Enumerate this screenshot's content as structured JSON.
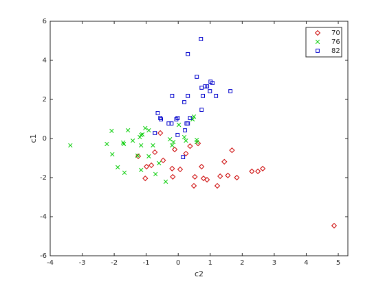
{
  "chart_data": {
    "type": "scatter",
    "x_label": "c2",
    "y_label": "c1",
    "xlim": [
      -4,
      5.3
    ],
    "ylim": [
      -6,
      6
    ],
    "xticks": [
      -4,
      -3,
      -2,
      -1,
      0,
      1,
      2,
      3,
      4,
      5
    ],
    "yticks": [
      -6,
      -4,
      -2,
      0,
      2,
      4,
      6
    ],
    "grid": false,
    "legend_position": "northeast",
    "series": [
      {
        "name": "70",
        "color": "#cc0000",
        "marker": "diamond",
        "x": [
          -0.56,
          -1.25,
          -0.99,
          -0.84,
          -0.73,
          -0.47,
          -1.03,
          -0.19,
          -0.17,
          0.06,
          -0.11,
          0.24,
          0.37,
          0.62,
          0.52,
          0.49,
          0.73,
          0.79,
          0.9,
          1.22,
          1.31,
          1.44,
          1.55,
          1.68,
          1.83,
          2.3,
          2.49,
          2.64,
          4.87
        ],
        "values": [
          0.28,
          -0.91,
          -1.44,
          -1.37,
          -0.7,
          -1.12,
          -2.04,
          -1.54,
          -1.96,
          -1.58,
          -0.56,
          -0.77,
          -0.39,
          -0.25,
          -1.96,
          -2.42,
          -1.44,
          -2.04,
          -2.11,
          -2.42,
          -1.93,
          -1.19,
          -1.89,
          -0.6,
          -2.0,
          -1.68,
          -1.68,
          -1.54,
          -4.46
        ]
      },
      {
        "name": "76",
        "color": "#00cc00",
        "marker": "x",
        "x": [
          -3.37,
          -2.23,
          -2.08,
          -2.06,
          -1.89,
          -1.72,
          -1.7,
          -1.68,
          -1.57,
          -1.42,
          -1.27,
          -1.2,
          -1.16,
          -1.16,
          -1.12,
          -1.16,
          -1.03,
          -0.92,
          -0.92,
          -0.79,
          -0.71,
          -0.6,
          -0.39,
          -0.26,
          -0.19,
          -0.15,
          0.02,
          0.19,
          0.24,
          0.45,
          0.49,
          0.58,
          0.58
        ],
        "values": [
          -0.35,
          -0.28,
          0.39,
          -0.81,
          -1.47,
          -0.21,
          -0.28,
          -1.75,
          0.42,
          -0.11,
          -0.88,
          0.07,
          0.18,
          -0.35,
          0.21,
          -1.61,
          0.53,
          0.42,
          -0.91,
          -0.35,
          -1.82,
          -1.26,
          -2.21,
          -0.04,
          -0.35,
          -0.18,
          0.7,
          0.07,
          -0.11,
          0.98,
          1.12,
          -0.07,
          -0.18
        ]
      },
      {
        "name": "82",
        "color": "#0000cc",
        "marker": "square",
        "x": [
          0.71,
          0.3,
          0.58,
          0.73,
          0.84,
          0.9,
          1.01,
          1.07,
          0.99,
          1.18,
          1.63,
          -0.19,
          0.3,
          0.77,
          0.19,
          0.37,
          -0.64,
          -0.56,
          -0.54,
          -0.06,
          -0.02,
          -0.3,
          -0.21,
          0.26,
          0.21,
          0.73,
          -0.73,
          -0.02,
          0.15,
          0.3
        ],
        "values": [
          5.09,
          4.32,
          3.16,
          2.6,
          2.67,
          2.67,
          2.91,
          2.84,
          2.42,
          2.18,
          2.42,
          2.18,
          2.18,
          2.18,
          1.86,
          1.05,
          1.3,
          1.05,
          0.98,
          0.98,
          1.05,
          0.77,
          0.77,
          0.77,
          0.42,
          1.47,
          0.28,
          0.18,
          -0.95,
          0.77
        ]
      }
    ]
  }
}
